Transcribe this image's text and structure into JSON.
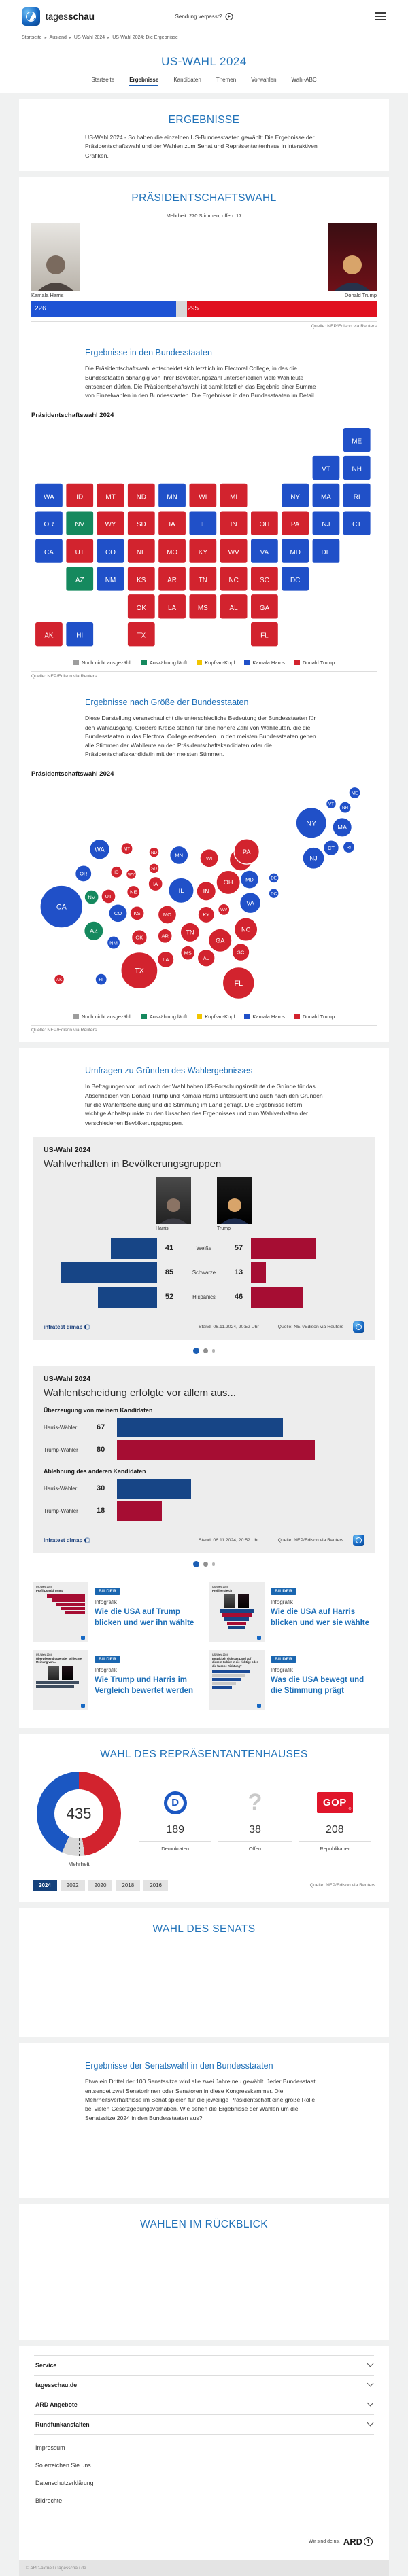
{
  "header": {
    "brand_prefix": "tages",
    "brand_suffix": "schau",
    "missed_show": "Sendung verpasst?"
  },
  "breadcrumb": [
    "Startseite",
    "Ausland",
    "US-Wahl 2024",
    "US-Wahl 2024: Die Ergebnisse"
  ],
  "hub": {
    "title": "US-WAHL 2024",
    "tabs": [
      {
        "label": "Startseite",
        "active": false
      },
      {
        "label": "Ergebnisse",
        "active": true
      },
      {
        "label": "Kandidaten",
        "active": false
      },
      {
        "label": "Themen",
        "active": false
      },
      {
        "label": "Vorwahlen",
        "active": false
      },
      {
        "label": "Wahl-ABC",
        "active": false
      }
    ]
  },
  "intro": {
    "title": "ERGEBNISSE",
    "text": "US-Wahl 2024 - So haben die einzelnen US-Bundesstaaten gewählt: Die Ergebnisse der Präsidentschaftswahl und der Wahlen zum Senat und Repräsentantenhaus in interaktiven Grafiken."
  },
  "president": {
    "title": "PRÄSIDENTSCHAFTSWAHL",
    "subtitle": "Mehrheit: 270 Stimmen, offen: 17",
    "source": "Quelle: NEP/Edison via Reuters"
  },
  "states_section": {
    "heading": "Ergebnisse in den Bundesstaaten",
    "text": "Die Präsidentschaftswahl entscheidet sich letztlich im Electoral College, in das die Bundesstaaten abhängig von ihrer Bevölkerungszahl unterschiedlich viele Wahlleute entsenden dürfen. Die Präsidentschaftswahl ist damit letztlich das Ergebnis einer Summe von Einzelwahlen in den Bundesstaaten. Die Ergebnisse in den Bundesstaaten im Detail.",
    "graphic_label": "Präsidentschaftswahl 2024",
    "source": "Quelle: NEP/Edison via Reuters"
  },
  "size_section": {
    "heading": "Ergebnisse nach Größe der Bundesstaaten",
    "text": "Diese Darstellung veranschaulicht die unterschiedliche Bedeutung der Bundesstaaten für den Wahlausgang. Größere Kreise stehen für eine höhere Zahl von Wahlleuten, die die Bundesstaaten in das Electoral College entsenden. In den meisten Bundesstaaten gehen alle Stimmen der Wahlleute an den Präsidentschaftskandidaten oder die Präsidentschaftskandidatin mit den meisten Stimmen.",
    "graphic_label": "Präsidentschaftswahl 2024",
    "source": "Quelle: NEP/Edison via Reuters"
  },
  "polls_section": {
    "heading": "Umfragen zu Gründen des Wahlergebnisses",
    "text": "In Befragungen vor und nach der Wahl haben US-Forschungsinstitute die Gründe für das Abschneiden von Donald Trump und Kamala Harris untersucht und auch nach den Gründen für die Wahlentscheidung und die Stimmung im Land gefragt. Die Ergebnisse liefern wichtige Anhaltspunkte zu den Ursachen des Ergebnisses und zum Wahlverhalten der verschiedenen Bevölkerungsgruppen."
  },
  "poll_card1": {
    "kicker": "US-Wahl 2024",
    "title": "Wahlverhalten in Bevölkerungsgruppen",
    "harris_label": "Harris",
    "trump_label": "Trump",
    "brand": "infratest dimap",
    "stand": "Stand:  06.11.2024, 20:52 Uhr",
    "source": "Quelle: NEP/Edison via Reuters"
  },
  "poll_card2": {
    "kicker": "US-Wahl 2024",
    "title": "Wahlentscheidung erfolgte vor allem aus...",
    "brand": "infratest dimap",
    "stand": "Stand:  06.11.2024, 20:52 Uhr",
    "source": "Quelle: NEP/Edison via Reuters"
  },
  "teasers": [
    {
      "badge": "BILDER",
      "kicker": "Infografik",
      "title": "Wie die USA auf Trump blicken und wer ihn wählte",
      "thumb_kicker": "US-Wahl 2024",
      "thumb_title": "Profil Donald Trump",
      "variant": "red-bars"
    },
    {
      "badge": "BILDER",
      "kicker": "Infografik",
      "title": "Wie die USA auf Harris blicken und wer sie wählte",
      "thumb_kicker": "US-Wahl 2024",
      "thumb_title": "Profilvergleich",
      "variant": "photos-double-bars"
    },
    {
      "badge": "BILDER",
      "kicker": "Infografik",
      "title": "Wie Trump und Harris im Vergleich bewertet werden",
      "thumb_kicker": "US-Wahl 2024",
      "thumb_title": "Überwiegend gute oder schlechte Meinung von...",
      "variant": "photos-dark-bars"
    },
    {
      "badge": "BILDER",
      "kicker": "Infografik",
      "title": "Was die USA bewegt und die Stimmung prägt",
      "thumb_kicker": "US-Wahl 2024",
      "thumb_title": "Entwickelt sich das Land auf diesem Gebiet in die richtige oder die falsche Richtung?",
      "variant": "blue-gray-bars"
    }
  ],
  "house": {
    "title": "WAHL DES REPRÄSENTANTENHAUSES",
    "center_label": "Mehrheit",
    "years": [
      "2024",
      "2022",
      "2020",
      "2018",
      "2016"
    ],
    "active_year": "2024",
    "source": "Quelle: NEP/Edison via Reuters"
  },
  "senate": {
    "title": "WAHL DES SENATS"
  },
  "senate_states": {
    "heading": "Ergebnisse der Senatswahl in den Bundesstaaten",
    "text": "Etwa ein Drittel der 100 Senatssitze wird alle zwei Jahre neu gewählt. Jeder Bundesstaat entsendet zwei Senatorinnen oder Senatoren in diese Kongresskammer. Die Mehrheitsverhältnisse im Senat spielen für die jeweilige Präsidentschaft eine große Rolle bei vielen Gesetzgebungsvorhaben. Wie sehen die Ergebnisse der Wahlen um die Senatssitze 2024 in den Bundesstaaten aus?"
  },
  "retro": {
    "title": "WAHLEN IM RÜCKBLICK"
  },
  "footer": {
    "accordions": [
      "Service",
      "tagesschau.de",
      "ARD Angebote",
      "Rundfunkanstalten"
    ],
    "links": [
      "Impressum",
      "So erreichen Sie uns",
      "Datenschutzerklärung",
      "Bildrechte"
    ],
    "ard_claim": "Wir sind deins.",
    "ard_logo": "ARD",
    "copyright": "© ARD-aktuell / tagesschau.de"
  },
  "colors": {
    "harris_blue": "#2050c8",
    "trump_red": "#d2232e",
    "counting_green": "#15895e",
    "open_gray": "#d8d8d8",
    "kopf_yellow": "#f2c500",
    "bar_blue": "#1e53d4",
    "bar_red": "#e0101f",
    "poll_blue": "#174586",
    "poll_red": "#a60d33",
    "dem_blue": "#1b57c2",
    "gop_red": "#e0162b",
    "link_blue": "#1d6fb8"
  },
  "chart_data": [
    {
      "type": "bar",
      "title": "Präsidentschaftswahl Electoral College",
      "series": [
        {
          "name": "Kamala Harris",
          "value": 226,
          "color": "#1e53d4"
        },
        {
          "name": "offen",
          "value": 17,
          "color": "#d8d8d8"
        },
        {
          "name": "Donald Trump",
          "value": 295,
          "color": "#e0101f"
        }
      ],
      "total": 538,
      "majority": 270
    },
    {
      "type": "heatmap",
      "title": "Präsidentschaftswahl 2024 – Ergebnisse in den Bundesstaaten",
      "legend": [
        {
          "label": "Noch nicht ausgezählt",
          "color": "#9d9d9d"
        },
        {
          "label": "Auszählung läuft",
          "color": "#15895e"
        },
        {
          "label": "Kopf-an-Kopf",
          "color": "#f2c500"
        },
        {
          "label": "Kamala Harris",
          "color": "#2050c8"
        },
        {
          "label": "Donald Trump",
          "color": "#d2232e"
        }
      ],
      "states": [
        {
          "abbr": "AK",
          "ev": 3,
          "result": "trump"
        },
        {
          "abbr": "AL",
          "ev": 9,
          "result": "trump"
        },
        {
          "abbr": "AR",
          "ev": 6,
          "result": "trump"
        },
        {
          "abbr": "AZ",
          "ev": 11,
          "result": "counting"
        },
        {
          "abbr": "CA",
          "ev": 54,
          "result": "harris"
        },
        {
          "abbr": "CO",
          "ev": 10,
          "result": "harris"
        },
        {
          "abbr": "CT",
          "ev": 7,
          "result": "harris"
        },
        {
          "abbr": "DC",
          "ev": 3,
          "result": "harris"
        },
        {
          "abbr": "DE",
          "ev": 3,
          "result": "harris"
        },
        {
          "abbr": "FL",
          "ev": 30,
          "result": "trump"
        },
        {
          "abbr": "GA",
          "ev": 16,
          "result": "trump"
        },
        {
          "abbr": "HI",
          "ev": 4,
          "result": "harris"
        },
        {
          "abbr": "IA",
          "ev": 6,
          "result": "trump"
        },
        {
          "abbr": "ID",
          "ev": 4,
          "result": "trump"
        },
        {
          "abbr": "IL",
          "ev": 19,
          "result": "harris"
        },
        {
          "abbr": "IN",
          "ev": 11,
          "result": "trump"
        },
        {
          "abbr": "KS",
          "ev": 6,
          "result": "trump"
        },
        {
          "abbr": "KY",
          "ev": 8,
          "result": "trump"
        },
        {
          "abbr": "LA",
          "ev": 8,
          "result": "trump"
        },
        {
          "abbr": "MA",
          "ev": 11,
          "result": "harris"
        },
        {
          "abbr": "MD",
          "ev": 10,
          "result": "harris"
        },
        {
          "abbr": "ME",
          "ev": 4,
          "result": "harris"
        },
        {
          "abbr": "MI",
          "ev": 15,
          "result": "trump"
        },
        {
          "abbr": "MN",
          "ev": 10,
          "result": "harris"
        },
        {
          "abbr": "MO",
          "ev": 10,
          "result": "trump"
        },
        {
          "abbr": "MS",
          "ev": 6,
          "result": "trump"
        },
        {
          "abbr": "MT",
          "ev": 4,
          "result": "trump"
        },
        {
          "abbr": "NC",
          "ev": 16,
          "result": "trump"
        },
        {
          "abbr": "ND",
          "ev": 3,
          "result": "trump"
        },
        {
          "abbr": "NE",
          "ev": 5,
          "result": "trump"
        },
        {
          "abbr": "NH",
          "ev": 4,
          "result": "harris"
        },
        {
          "abbr": "NJ",
          "ev": 14,
          "result": "harris"
        },
        {
          "abbr": "NM",
          "ev": 5,
          "result": "harris"
        },
        {
          "abbr": "NV",
          "ev": 6,
          "result": "counting"
        },
        {
          "abbr": "NY",
          "ev": 28,
          "result": "harris"
        },
        {
          "abbr": "OH",
          "ev": 17,
          "result": "trump"
        },
        {
          "abbr": "OK",
          "ev": 7,
          "result": "trump"
        },
        {
          "abbr": "OR",
          "ev": 8,
          "result": "harris"
        },
        {
          "abbr": "PA",
          "ev": 19,
          "result": "trump"
        },
        {
          "abbr": "RI",
          "ev": 4,
          "result": "harris"
        },
        {
          "abbr": "SC",
          "ev": 9,
          "result": "trump"
        },
        {
          "abbr": "SD",
          "ev": 3,
          "result": "trump"
        },
        {
          "abbr": "TN",
          "ev": 11,
          "result": "trump"
        },
        {
          "abbr": "TX",
          "ev": 40,
          "result": "trump"
        },
        {
          "abbr": "UT",
          "ev": 6,
          "result": "trump"
        },
        {
          "abbr": "VA",
          "ev": 13,
          "result": "harris"
        },
        {
          "abbr": "VT",
          "ev": 3,
          "result": "harris"
        },
        {
          "abbr": "WA",
          "ev": 12,
          "result": "harris"
        },
        {
          "abbr": "WI",
          "ev": 10,
          "result": "trump"
        },
        {
          "abbr": "WV",
          "ev": 4,
          "result": "trump"
        },
        {
          "abbr": "WY",
          "ev": 3,
          "result": "trump"
        }
      ]
    },
    {
      "type": "scatter",
      "title": "Präsidentschaftswahl 2024 – Ergebnisse nach Größe der Bundesstaaten",
      "note": "Dorling-Kartogramm, Kreisfläche proportional zur Zahl der Wahlleute; nutzt dieselben Bundesstaaten-Daten wie die Karte"
    },
    {
      "type": "bar",
      "title": "Wahlverhalten in Bevölkerungsgruppen",
      "categories": [
        "Weiße",
        "Schwarze",
        "Hispanics"
      ],
      "series": [
        {
          "name": "Harris",
          "values": [
            41,
            85,
            52
          ],
          "color": "#174586"
        },
        {
          "name": "Trump",
          "values": [
            57,
            13,
            46
          ],
          "color": "#a60d33"
        }
      ]
    },
    {
      "type": "bar",
      "title": "Wahlentscheidung erfolgte vor allem aus...",
      "groups": [
        {
          "label": "Überzeugung von meinem Kandidaten",
          "rows": [
            {
              "label": "Harris-Wähler",
              "value": 67,
              "color": "#174586"
            },
            {
              "label": "Trump-Wähler",
              "value": 80,
              "color": "#a60d33"
            }
          ]
        },
        {
          "label": "Ablehnung des anderen Kandidaten",
          "rows": [
            {
              "label": "Harris-Wähler",
              "value": 30,
              "color": "#174586"
            },
            {
              "label": "Trump-Wähler",
              "value": 18,
              "color": "#a60d33"
            }
          ]
        }
      ]
    },
    {
      "type": "pie",
      "title": "Wahl des Repräsentantenhauses",
      "total": 435,
      "slices": [
        {
          "label": "Demokraten",
          "value": 189,
          "color": "#1b57c2",
          "logo": "dem"
        },
        {
          "label": "Offen",
          "value": 38,
          "color": "#d8d8d8",
          "logo": "question"
        },
        {
          "label": "Republikaner",
          "value": 208,
          "color": "#d2232e",
          "logo": "gop"
        }
      ]
    }
  ]
}
